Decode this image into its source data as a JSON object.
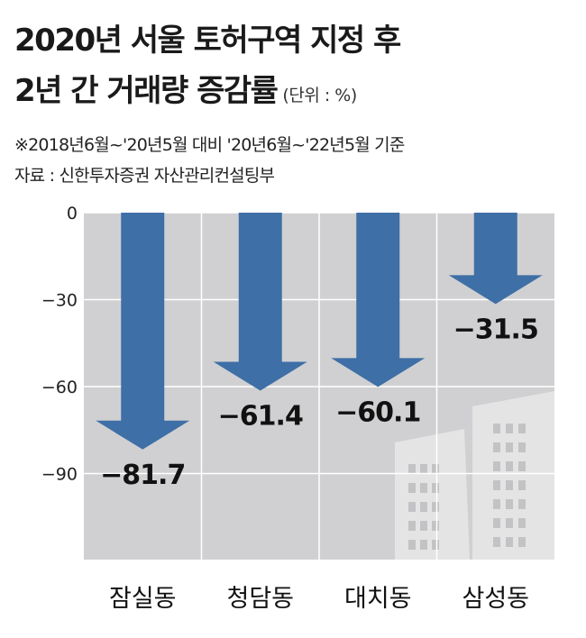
{
  "header": {
    "title_line1": "2020년 서울 토허구역 지정 후",
    "title_line2": "2년 간 거래량 증감률",
    "unit": "(단위 : %)",
    "note": "※2018년6월~'20년5월 대비 '20년6월~'22년5월 기준",
    "source": "자료 : 신한투자증권 자산관리컨설팅부"
  },
  "chart_data": {
    "type": "bar",
    "categories": [
      "잠실동",
      "청담동",
      "대치동",
      "삼성동"
    ],
    "values": [
      -81.7,
      -61.4,
      -60.1,
      -31.5
    ],
    "value_labels": [
      "−81.7",
      "−61.4",
      "−60.1",
      "−31.5"
    ],
    "yticks": [
      0,
      -30,
      -60,
      -90
    ],
    "ytick_labels": [
      "0",
      "−30",
      "−60",
      "−90"
    ],
    "ylim": [
      -120,
      0
    ],
    "grid": true,
    "colors": {
      "arrow": "#3e6fa6",
      "plot_bg": "#d0d0d2",
      "buildings": "#e4e4e5",
      "grid": "#ffffff"
    }
  }
}
